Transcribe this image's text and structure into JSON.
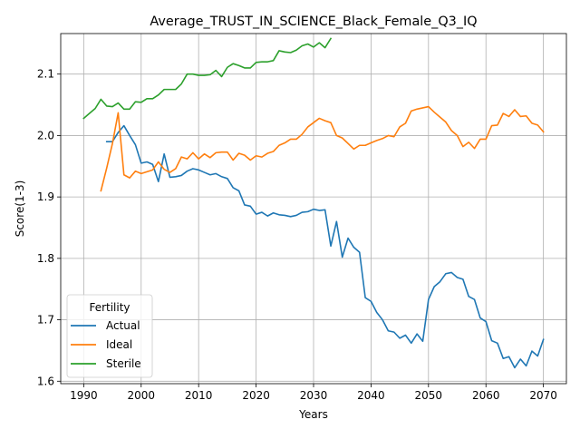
{
  "chart_data": {
    "type": "line",
    "title": "Average_TRUST_IN_SCIENCE_Black_Female_Q3_IQ",
    "xlabel": "Years",
    "ylabel": "Score(1-3)",
    "xlim": [
      1986,
      2074
    ],
    "ylim": [
      1.596,
      2.166
    ],
    "xticks": [
      1990,
      2000,
      2010,
      2020,
      2030,
      2040,
      2050,
      2060,
      2070
    ],
    "yticks": [
      1.6,
      1.7,
      1.8,
      1.9,
      2.0,
      2.1
    ],
    "grid": true,
    "legend": {
      "title": "Fertility",
      "placement": "lower-left"
    },
    "series": [
      {
        "name": "Actual",
        "color": "#1f77b4",
        "x": [
          1994,
          1995,
          1996,
          1997,
          1998,
          1999,
          2000,
          2001,
          2002,
          2003,
          2004,
          2005,
          2006,
          2007,
          2008,
          2009,
          2010,
          2011,
          2012,
          2013,
          2014,
          2015,
          2016,
          2017,
          2018,
          2019,
          2020,
          2021,
          2022,
          2023,
          2024,
          2025,
          2026,
          2027,
          2028,
          2029,
          2030,
          2031,
          2032,
          2033,
          2034,
          2035,
          2036,
          2037,
          2038,
          2039,
          2040,
          2041,
          2042,
          2043,
          2044,
          2045,
          2046,
          2047,
          2048,
          2049,
          2050,
          2051,
          2052,
          2053,
          2054,
          2055,
          2056,
          2057,
          2058,
          2059,
          2060,
          2061,
          2062,
          2063,
          2064,
          2065,
          2066,
          2067,
          2068,
          2069,
          2070
        ],
        "y": [
          1.99,
          1.99,
          2.005,
          2.016,
          2.0,
          1.985,
          1.955,
          1.957,
          1.953,
          1.925,
          1.97,
          1.932,
          1.933,
          1.935,
          1.942,
          1.946,
          1.944,
          1.94,
          1.936,
          1.938,
          1.933,
          1.93,
          1.915,
          1.91,
          1.887,
          1.885,
          1.872,
          1.875,
          1.869,
          1.874,
          1.871,
          1.87,
          1.868,
          1.87,
          1.875,
          1.876,
          1.88,
          1.878,
          1.879,
          1.82,
          1.86,
          1.802,
          1.833,
          1.818,
          1.81,
          1.736,
          1.73,
          1.712,
          1.7,
          1.682,
          1.68,
          1.67,
          1.675,
          1.662,
          1.677,
          1.665,
          1.733,
          1.754,
          1.762,
          1.775,
          1.777,
          1.769,
          1.766,
          1.738,
          1.733,
          1.703,
          1.697,
          1.666,
          1.662,
          1.637,
          1.64,
          1.622,
          1.636,
          1.625,
          1.649,
          1.641,
          1.668
        ]
      },
      {
        "name": "Ideal",
        "color": "#ff7f0e",
        "x": [
          1993,
          1994,
          1995,
          1996,
          1997,
          1998,
          1999,
          2000,
          2001,
          2002,
          2003,
          2004,
          2005,
          2006,
          2007,
          2008,
          2009,
          2010,
          2011,
          2012,
          2013,
          2014,
          2015,
          2016,
          2017,
          2018,
          2019,
          2020,
          2021,
          2022,
          2023,
          2024,
          2025,
          2026,
          2027,
          2028,
          2029,
          2030,
          2031,
          2032,
          2033,
          2034,
          2035,
          2036,
          2037,
          2038,
          2039,
          2040,
          2041,
          2042,
          2043,
          2044,
          2045,
          2046,
          2047,
          2048,
          2049,
          2050,
          2051,
          2052,
          2053,
          2054,
          2055,
          2056,
          2057,
          2058,
          2059,
          2060,
          2061,
          2062,
          2063,
          2064,
          2065,
          2066,
          2067,
          2068,
          2069,
          2070
        ],
        "y": [
          1.91,
          1.947,
          1.987,
          2.037,
          1.936,
          1.931,
          1.942,
          1.938,
          1.941,
          1.944,
          1.957,
          1.945,
          1.94,
          1.946,
          1.965,
          1.962,
          1.972,
          1.962,
          1.97,
          1.964,
          1.972,
          1.973,
          1.973,
          1.96,
          1.971,
          1.968,
          1.96,
          1.967,
          1.965,
          1.971,
          1.974,
          1.984,
          1.988,
          1.994,
          1.994,
          2.002,
          2.014,
          2.021,
          2.028,
          2.024,
          2.021,
          2.0,
          1.996,
          1.987,
          1.978,
          1.984,
          1.984,
          1.988,
          1.992,
          1.995,
          2.0,
          1.998,
          2.014,
          2.02,
          2.04,
          2.043,
          2.045,
          2.047,
          2.038,
          2.03,
          2.022,
          2.008,
          2.0,
          1.982,
          1.989,
          1.979,
          1.994,
          1.994,
          2.016,
          2.017,
          2.036,
          2.031,
          2.042,
          2.031,
          2.032,
          2.02,
          2.017,
          2.006
        ]
      },
      {
        "name": "Sterile",
        "color": "#2ca02c",
        "x": [
          1990,
          1991,
          1992,
          1993,
          1994,
          1995,
          1996,
          1997,
          1998,
          1999,
          2000,
          2001,
          2002,
          2003,
          2004,
          2005,
          2006,
          2007,
          2008,
          2009,
          2010,
          2011,
          2012,
          2013,
          2014,
          2015,
          2016,
          2017,
          2018,
          2019,
          2020,
          2021,
          2022,
          2023,
          2024,
          2025,
          2026,
          2027,
          2028,
          2029,
          2030,
          2031,
          2032,
          2033
        ],
        "y": [
          2.028,
          2.036,
          2.044,
          2.059,
          2.048,
          2.047,
          2.053,
          2.043,
          2.043,
          2.055,
          2.054,
          2.06,
          2.06,
          2.066,
          2.075,
          2.075,
          2.075,
          2.084,
          2.1,
          2.1,
          2.098,
          2.098,
          2.099,
          2.106,
          2.096,
          2.111,
          2.117,
          2.114,
          2.11,
          2.11,
          2.119,
          2.12,
          2.12,
          2.122,
          2.138,
          2.136,
          2.135,
          2.139,
          2.146,
          2.149,
          2.144,
          2.151,
          2.143,
          2.158
        ]
      }
    ]
  }
}
